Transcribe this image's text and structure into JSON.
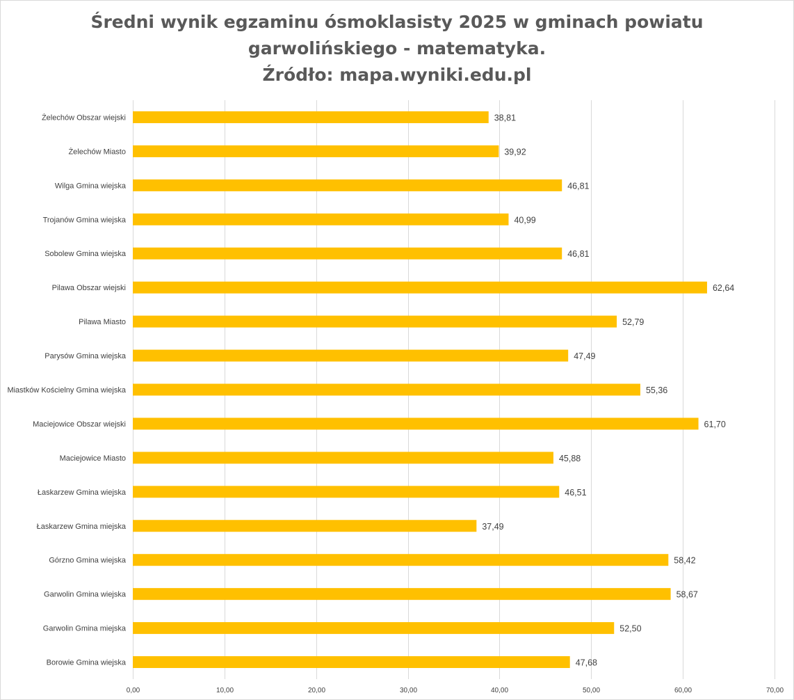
{
  "chart_data": {
    "type": "bar",
    "orientation": "horizontal",
    "title_lines": [
      "Średni wynik egzaminu ósmoklasisty 2025 w gminach powiatu",
      "garwolińskiego - matematyka.",
      "Źródło: mapa.wyniki.edu.pl"
    ],
    "categories": [
      "Żelechów Obszar wiejski",
      "Żelechów Miasto",
      "Wilga Gmina wiejska",
      "Trojanów Gmina wiejska",
      "Sobolew Gmina wiejska",
      "Pilawa Obszar wiejski",
      "Pilawa Miasto",
      "Parysów Gmina wiejska",
      "Miastków Kościelny Gmina wiejska",
      "Maciejowice Obszar wiejski",
      "Maciejowice Miasto",
      "Łaskarzew Gmina wiejska",
      "Łaskarzew Gmina miejska",
      "Górzno Gmina wiejska",
      "Garwolin Gmina wiejska",
      "Garwolin Gmina miejska",
      "Borowie Gmina wiejska"
    ],
    "values": [
      38.81,
      39.92,
      46.81,
      40.99,
      46.81,
      62.64,
      52.79,
      47.49,
      55.36,
      61.7,
      45.88,
      46.51,
      37.49,
      58.42,
      58.67,
      52.5,
      47.68
    ],
    "value_labels": [
      "38,81",
      "39,92",
      "46,81",
      "40,99",
      "46,81",
      "62,64",
      "52,79",
      "47,49",
      "55,36",
      "61,70",
      "45,88",
      "46,51",
      "37,49",
      "58,42",
      "58,67",
      "52,50",
      "47,68"
    ],
    "x_ticks": [
      0,
      10,
      20,
      30,
      40,
      50,
      60,
      70
    ],
    "x_tick_labels": [
      "0,00",
      "10,00",
      "20,00",
      "30,00",
      "40,00",
      "50,00",
      "60,00",
      "70,00"
    ],
    "xlim": [
      0,
      70
    ],
    "xlabel": "",
    "ylabel": "",
    "grid": true,
    "legend": "none",
    "bar_color": "#FFC000",
    "gridline_color": "#D9D9D9",
    "text_color": "#404040",
    "title_color": "#595959"
  }
}
